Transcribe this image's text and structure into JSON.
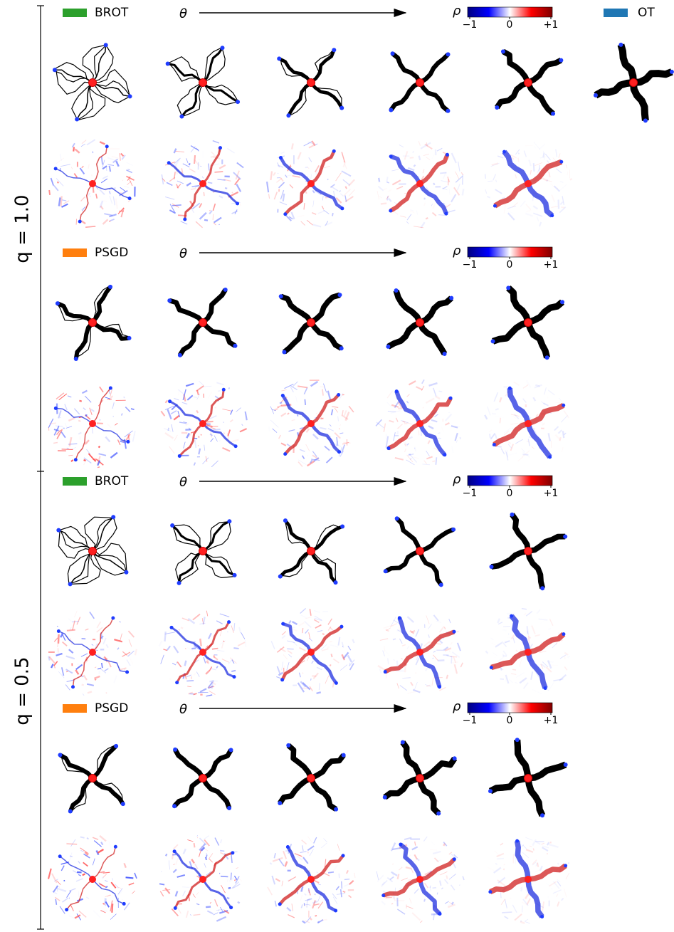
{
  "groups": [
    {
      "label": "q = 1.0",
      "blocks": [
        {
          "method": "BROT",
          "color": "#2ca02c",
          "param": "θ",
          "colorbar": {
            "label": "ρ",
            "ticks": [
              "−1",
              "0",
              "+1"
            ]
          }
        },
        {
          "method": "PSGD",
          "color": "#ff7f0e",
          "param": "θ",
          "colorbar": {
            "label": "ρ",
            "ticks": [
              "−1",
              "0",
              "+1"
            ]
          }
        }
      ]
    },
    {
      "label": "q = 0.5",
      "blocks": [
        {
          "method": "BROT",
          "color": "#2ca02c",
          "param": "θ",
          "colorbar": {
            "label": "ρ",
            "ticks": [
              "−1",
              "0",
              "+1"
            ]
          }
        },
        {
          "method": "PSGD",
          "color": "#ff7f0e",
          "param": "θ",
          "colorbar": {
            "label": "ρ",
            "ticks": [
              "−1",
              "0",
              "+1"
            ]
          }
        }
      ]
    }
  ],
  "reference": {
    "method": "OT",
    "color": "#1f77b4"
  }
}
